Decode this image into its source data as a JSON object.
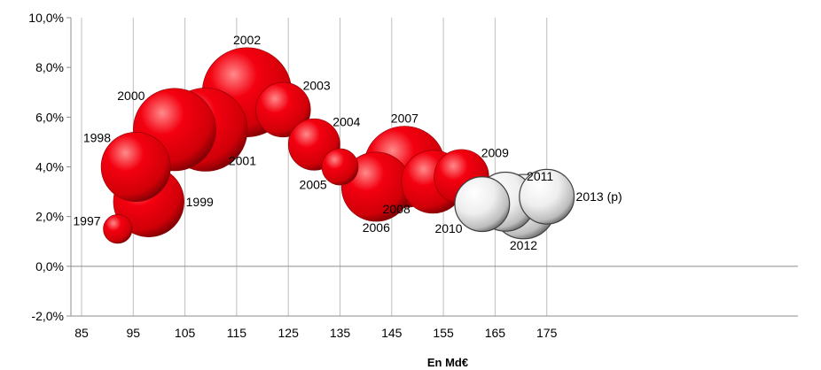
{
  "chart_data": {
    "type": "bubble",
    "title": "",
    "xlabel": "En Md€",
    "ylabel": "",
    "xlim": [
      85,
      180
    ],
    "ylim": [
      -2,
      10
    ],
    "x_ticks": [
      "85",
      "95",
      "105",
      "115",
      "125",
      "135",
      "145",
      "155",
      "165",
      "175"
    ],
    "y_ticks": [
      "-2,0%",
      "0,0%",
      "2,0%",
      "4,0%",
      "6,0%",
      "8,0%",
      "10,0%"
    ],
    "grid": "vertical",
    "colors": {
      "actual": "#e8000b",
      "forecast": "#e6e6e6",
      "edge": "#404040"
    },
    "points": [
      {
        "label": "1997",
        "x": 92,
        "y": 1.5,
        "size": 0.5,
        "kind": "actual",
        "label_pos": "left"
      },
      {
        "label": "1998",
        "x": 95.5,
        "y": 4.0,
        "size": 2.9,
        "kind": "actual",
        "label_pos": "upper-left"
      },
      {
        "label": "1999",
        "x": 98,
        "y": 2.6,
        "size": 3.0,
        "kind": "actual",
        "label_pos": "right"
      },
      {
        "label": "2000",
        "x": 103,
        "y": 5.5,
        "size": 4.1,
        "kind": "actual",
        "label_pos": "upper-left"
      },
      {
        "label": "2001",
        "x": 109,
        "y": 5.5,
        "size": 4.2,
        "kind": "actual",
        "label_pos": "lower-right"
      },
      {
        "label": "2002",
        "x": 117,
        "y": 7.0,
        "size": 4.8,
        "kind": "actual",
        "label_pos": "top"
      },
      {
        "label": "2003",
        "x": 124,
        "y": 6.3,
        "size": 1.8,
        "kind": "actual",
        "label_pos": "upper-right"
      },
      {
        "label": "2004",
        "x": 130,
        "y": 4.9,
        "size": 1.6,
        "kind": "actual",
        "label_pos": "upper-right"
      },
      {
        "label": "2005",
        "x": 135,
        "y": 4.0,
        "size": 0.8,
        "kind": "actual",
        "label_pos": "lower-left"
      },
      {
        "label": "2006",
        "x": 142,
        "y": 3.2,
        "size": 2.9,
        "kind": "actual",
        "label_pos": "below"
      },
      {
        "label": "2007",
        "x": 147.5,
        "y": 4.0,
        "size": 4.0,
        "kind": "actual",
        "label_pos": "top"
      },
      {
        "label": "2008",
        "x": 153,
        "y": 3.4,
        "size": 2.4,
        "kind": "actual",
        "label_pos": "lower-left"
      },
      {
        "label": "2009",
        "x": 158.5,
        "y": 3.6,
        "size": 1.8,
        "kind": "actual",
        "label_pos": "upper-right"
      },
      {
        "label": "2010",
        "x": 162.5,
        "y": 2.5,
        "size": 1.8,
        "kind": "forecast",
        "label_pos": "lower-left"
      },
      {
        "label": "2011",
        "x": 167,
        "y": 2.6,
        "size": 2.1,
        "kind": "forecast",
        "label_pos": "upper-right"
      },
      {
        "label": "2012",
        "x": 170.5,
        "y": 2.4,
        "size": 2.5,
        "kind": "forecast",
        "label_pos": "below"
      },
      {
        "label": "2013 (p)",
        "x": 175,
        "y": 2.8,
        "size": 1.8,
        "kind": "forecast",
        "label_pos": "right"
      }
    ]
  }
}
